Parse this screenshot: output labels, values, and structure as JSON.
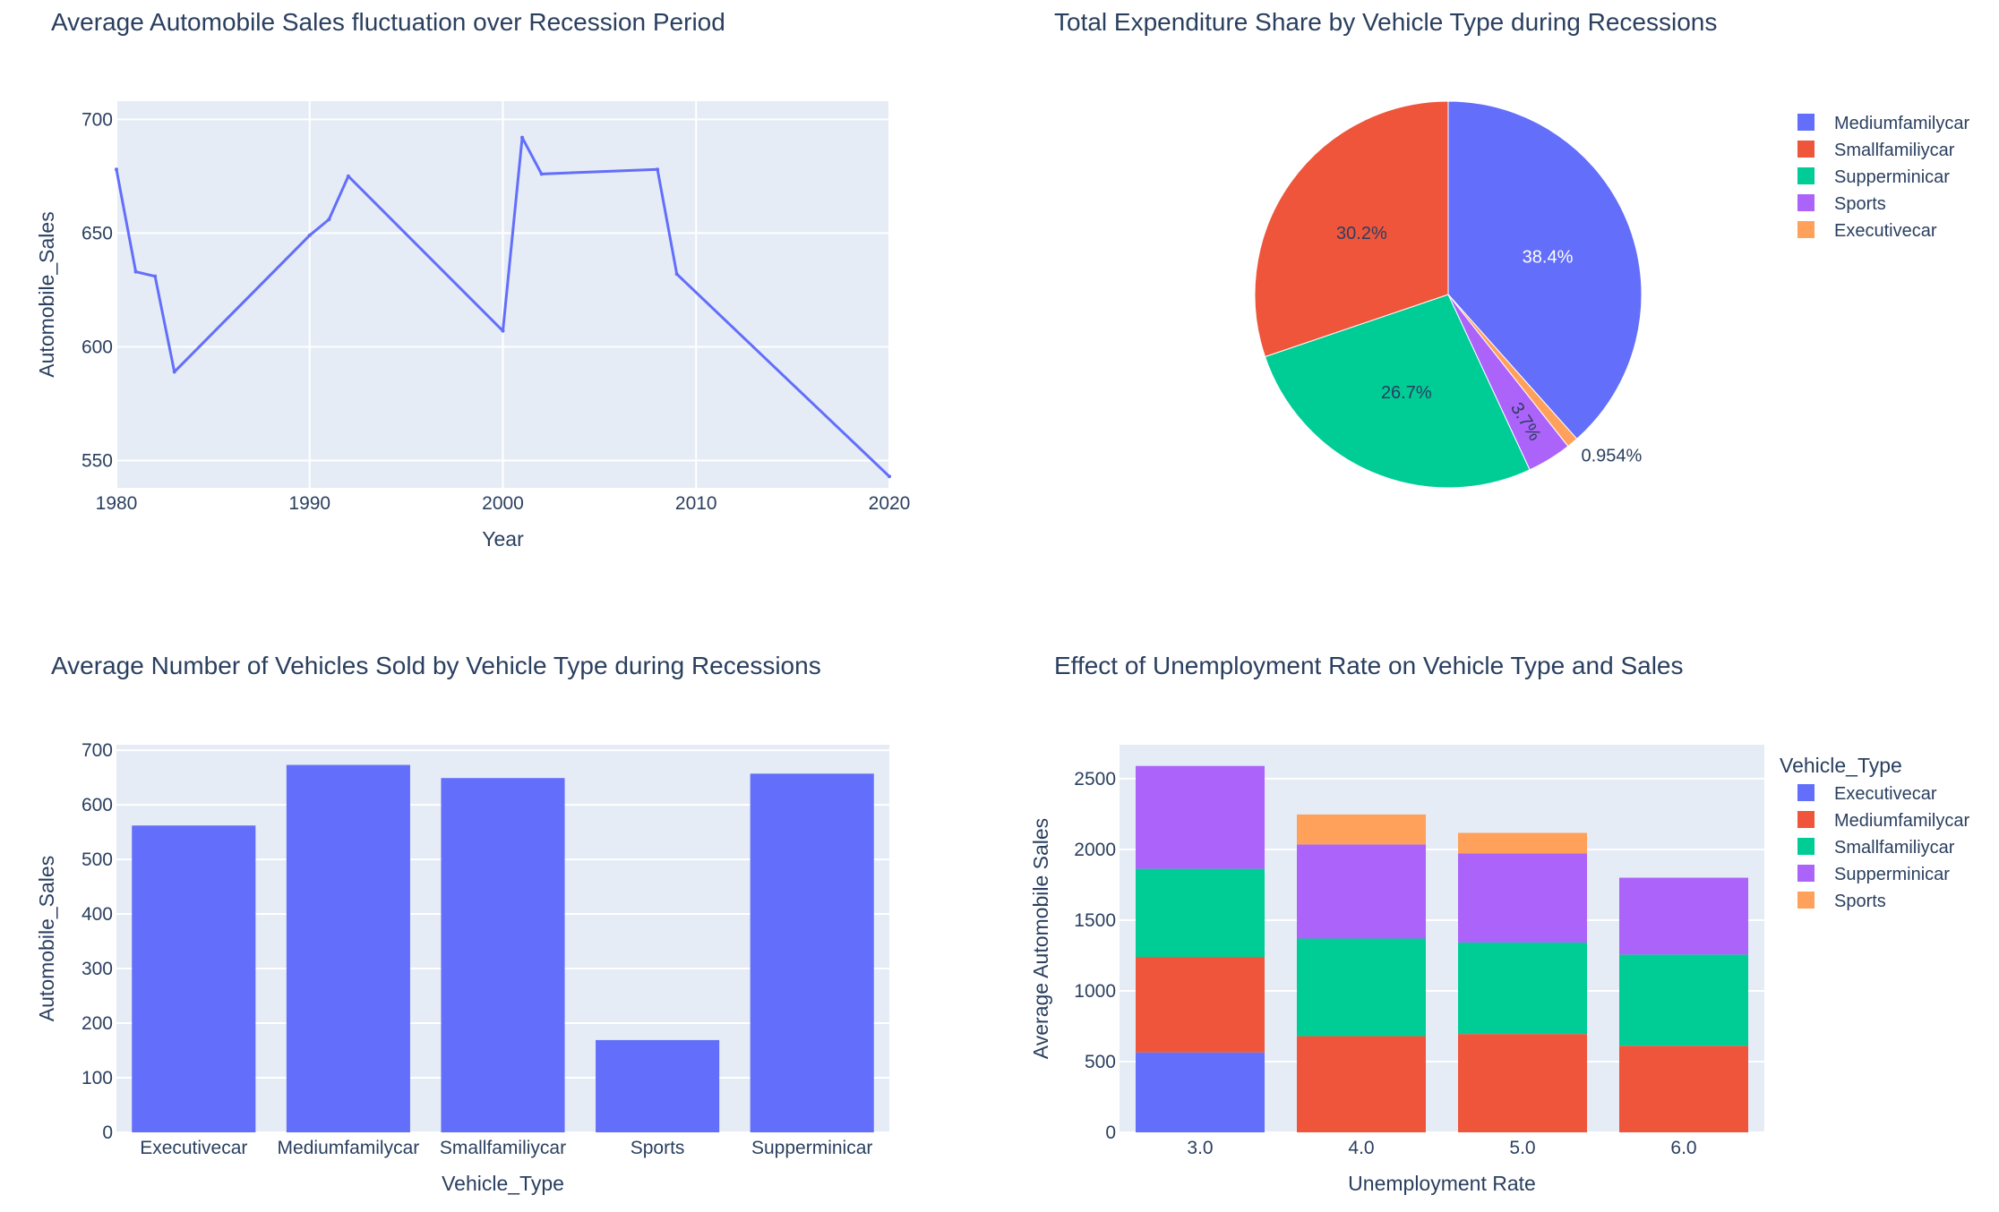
{
  "colors": {
    "plot_bg": "#E5ECF6",
    "grid": "#ffffff",
    "text": "#2a3f5f",
    "series": [
      "#636EFA",
      "#EF553B",
      "#00CC96",
      "#AB63FA",
      "#FFA15A"
    ],
    "pie": [
      "#636EFA",
      "#EF553B",
      "#00CC96",
      "#AB63FA",
      "#FFA15A"
    ]
  },
  "chart_data": [
    {
      "id": "line",
      "type": "line",
      "title": "Average Automobile Sales fluctuation over Recession Period",
      "xlabel": "Year",
      "ylabel": "Automobile_Sales",
      "xlim": [
        1980,
        2020
      ],
      "ylim": [
        538,
        708
      ],
      "x_ticks": [
        1980,
        1990,
        2000,
        2010,
        2020
      ],
      "y_ticks": [
        550,
        600,
        650,
        700
      ],
      "grid": true,
      "x": [
        1980,
        1981,
        1982,
        1983,
        1990,
        1991,
        1992,
        2000,
        2001,
        2002,
        2008,
        2009,
        2020
      ],
      "y": [
        678,
        633,
        631,
        589,
        649,
        656,
        675,
        607,
        692,
        676,
        678,
        632,
        543
      ]
    },
    {
      "id": "pie",
      "type": "pie",
      "title": "Total Expenditure Share by Vehicle Type during Recessions",
      "legend_position": "top-right",
      "slices": [
        {
          "label": "Mediumfamilycar",
          "percent_text": "38.4%",
          "value": 38.4
        },
        {
          "label": "Smallfamiliycar",
          "percent_text": "30.2%",
          "value": 30.2
        },
        {
          "label": "Supperminicar",
          "percent_text": "26.7%",
          "value": 26.7
        },
        {
          "label": "Sports",
          "percent_text": "3.7%",
          "value": 3.7
        },
        {
          "label": "Executivecar",
          "percent_text": "0.954%",
          "value": 0.954
        }
      ],
      "slice_order": [
        0,
        4,
        3,
        2,
        1
      ]
    },
    {
      "id": "bar",
      "type": "bar",
      "title": "Average Number of Vehicles Sold by Vehicle Type during Recessions",
      "xlabel": "Vehicle_Type",
      "ylabel": "Automobile_Sales",
      "ylim": [
        0,
        710
      ],
      "y_ticks": [
        0,
        100,
        200,
        300,
        400,
        500,
        600,
        700
      ],
      "grid": true,
      "categories": [
        "Executivecar",
        "Mediumfamilycar",
        "Smallfamiliycar",
        "Sports",
        "Supperminicar"
      ],
      "values": [
        562,
        673,
        649,
        169,
        657
      ]
    },
    {
      "id": "stacked",
      "type": "bar",
      "stacked": true,
      "title": "Effect of Unemployment Rate on Vehicle Type and Sales",
      "xlabel": "Unemployment Rate",
      "ylabel": "Average Automobile Sales",
      "ylim": [
        0,
        2740
      ],
      "y_ticks": [
        0,
        500,
        1000,
        1500,
        2000,
        2500
      ],
      "grid": true,
      "legend_title": "Vehicle_Type",
      "legend_position": "right",
      "categories": [
        "3.0",
        "4.0",
        "5.0",
        "6.0"
      ],
      "series": [
        {
          "name": "Executivecar",
          "values": [
            565,
            0,
            0,
            0
          ]
        },
        {
          "name": "Mediumfamilycar",
          "values": [
            675,
            680,
            695,
            612
          ]
        },
        {
          "name": "Smallfamiliycar",
          "values": [
            623,
            690,
            647,
            645
          ]
        },
        {
          "name": "Supperminicar",
          "values": [
            727,
            665,
            630,
            543
          ]
        },
        {
          "name": "Sports",
          "values": [
            0,
            212,
            145,
            0
          ]
        }
      ]
    }
  ]
}
